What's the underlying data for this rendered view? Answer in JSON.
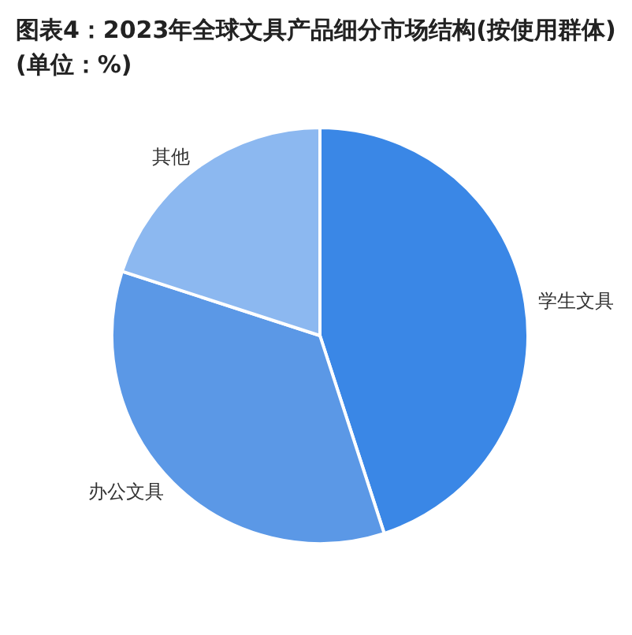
{
  "chart_data": {
    "type": "pie",
    "title": "图表4：2023年全球文具产品细分市场结构(按使用群体)(单位：%)",
    "categories": [
      "学生文具",
      "办公文具",
      "其他"
    ],
    "values": [
      45,
      35,
      20
    ],
    "colors": [
      "#3a87e6",
      "#5b98e6",
      "#8cb8f0"
    ],
    "legend": false
  }
}
